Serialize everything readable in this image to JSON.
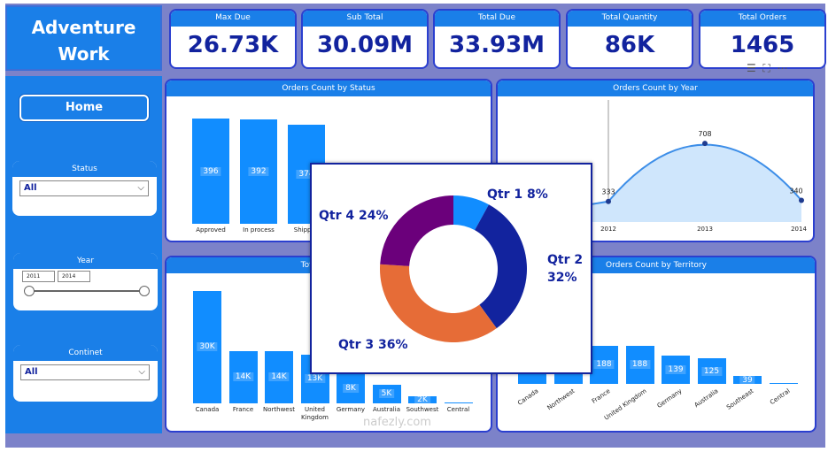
{
  "app": {
    "title": "Adventure Work",
    "home_label": "Home",
    "watermark": "nafezly.com"
  },
  "slicers": {
    "status": {
      "label": "Status",
      "value": "All"
    },
    "year": {
      "label": "Year",
      "from": "2011",
      "to": "2014"
    },
    "continent": {
      "label": "Continet",
      "value": "All"
    }
  },
  "kpis": [
    {
      "label": "Max Due",
      "value": "26.73K"
    },
    {
      "label": "Sub Total",
      "value": "30.09M"
    },
    {
      "label": "Total Due",
      "value": "33.93M"
    },
    {
      "label": "Total Quantity",
      "value": "86K"
    },
    {
      "label": "Total Orders",
      "value": "1465"
    }
  ],
  "colors": {
    "accent": "#1a7fe8",
    "bar": "#118dff",
    "kpi_text": "#12239e",
    "background": "#7c82c9"
  },
  "chart_data": [
    {
      "type": "bar",
      "title": "Orders Count by Status",
      "categories": [
        "Approved",
        "In process",
        "Shipped"
      ],
      "values": [
        396,
        392,
        374
      ],
      "labels": [
        "396",
        "392",
        "374"
      ]
    },
    {
      "type": "area",
      "title": "Orders Count by Year",
      "x": [
        "2012",
        "2013",
        "2014"
      ],
      "values": [
        333,
        708,
        340
      ]
    },
    {
      "type": "bar",
      "title": "Total Quantity",
      "categories": [
        "Canada",
        "France",
        "Northwest",
        "United Kingdom",
        "Germany",
        "Australia",
        "Southwest",
        "Central"
      ],
      "values": [
        30,
        14,
        14,
        13,
        8,
        5,
        2,
        0.3
      ],
      "labels": [
        "30K",
        "14K",
        "14K",
        "13K",
        "8K",
        "5K",
        "2K",
        ""
      ]
    },
    {
      "type": "bar",
      "title": "Orders Count by Territory",
      "categories": [
        "Canada",
        "Northwest",
        "France",
        "United Kingdom",
        "Germany",
        "Australia",
        "Southeast",
        "Central"
      ],
      "values": [
        null,
        null,
        188,
        188,
        139,
        125,
        39,
        1
      ],
      "labels": [
        "",
        "",
        "188",
        "188",
        "139",
        "125",
        "39",
        ""
      ]
    },
    {
      "type": "pie",
      "donut": true,
      "categories": [
        "Qtr 1",
        "Qtr 2",
        "Qtr 3",
        "Qtr 4"
      ],
      "values": [
        8,
        32,
        36,
        24
      ],
      "labels": [
        "Qtr 1 8%",
        "Qtr 2 32%",
        "Qtr 3 36%",
        "Qtr 4 24%"
      ],
      "colors": [
        "#118dff",
        "#12239e",
        "#e66c37",
        "#6b007b"
      ]
    }
  ]
}
